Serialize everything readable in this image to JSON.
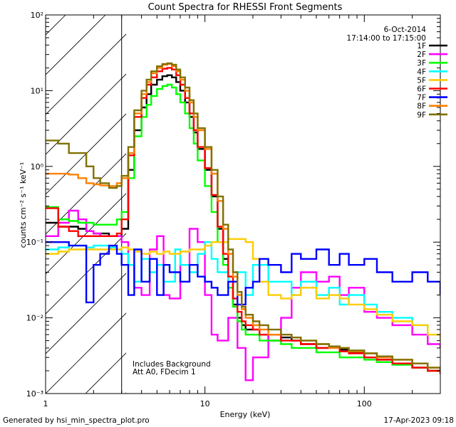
{
  "chart_data": {
    "type": "line",
    "title": "Count Spectra for RHESSI Front Segments",
    "xlabel": "Energy (keV)",
    "ylabel": "counts cm⁻² s⁻¹ keV⁻¹",
    "xscale": "log",
    "yscale": "log",
    "xlim": [
      1,
      300
    ],
    "ylim": [
      0.001,
      100
    ],
    "x_tick_labels": [
      "1",
      "10",
      "100"
    ],
    "y_tick_labels": [
      "10⁻³",
      "10⁻²",
      "10⁻¹",
      "10⁰",
      "10¹",
      "10²"
    ],
    "shaded_region_keV": [
      1,
      3
    ],
    "date": "6-Oct-2014",
    "time_range": "17:14:00 to 17:15:00",
    "legend_position": "top-right",
    "annotations": [
      "Includes Background",
      "Att A0, FDecim 1"
    ],
    "footer_left": "Generated by hsi_min_spectra_plot.pro",
    "footer_right": "17-Apr-2023 09:18",
    "series": [
      {
        "name": "1F",
        "color": "#000000",
        "x": [
          1.0,
          1.2,
          1.4,
          1.6,
          1.8,
          2.0,
          2.2,
          2.5,
          2.8,
          3.0,
          3.3,
          3.6,
          4.0,
          4.3,
          4.6,
          5.0,
          5.4,
          5.8,
          6.2,
          6.6,
          7.0,
          7.5,
          8.0,
          8.5,
          9.0,
          10,
          11,
          12,
          13,
          14,
          15,
          16,
          17,
          18,
          20,
          22,
          25,
          30,
          35,
          40,
          50,
          60,
          70,
          80,
          100,
          120,
          150,
          200,
          250,
          300
        ],
        "y": [
          0.18,
          0.16,
          0.16,
          0.15,
          0.14,
          0.13,
          0.13,
          0.12,
          0.12,
          0.15,
          0.9,
          3,
          6,
          9,
          12,
          14,
          15.5,
          16,
          15,
          13,
          10,
          7,
          4.5,
          2.8,
          1.7,
          0.9,
          0.4,
          0.15,
          0.06,
          0.03,
          0.015,
          0.01,
          0.008,
          0.007,
          0.007,
          0.006,
          0.005,
          0.0055,
          0.005,
          0.0045,
          0.004,
          0.0042,
          0.0038,
          0.0035,
          0.003,
          0.0028,
          0.0025,
          0.0022,
          0.002,
          0.002
        ]
      },
      {
        "name": "2F",
        "color": "#ff00ff",
        "x": [
          1.0,
          1.2,
          1.4,
          1.6,
          1.8,
          2.0,
          2.2,
          2.5,
          2.8,
          3.0,
          3.3,
          3.6,
          4.0,
          4.5,
          5.0,
          5.5,
          6.0,
          7.0,
          8.0,
          9.0,
          10,
          11,
          12,
          14,
          16,
          18,
          20,
          25,
          30,
          35,
          40,
          50,
          60,
          70,
          80,
          100,
          120,
          150,
          200,
          250,
          300
        ],
        "y": [
          0.12,
          0.18,
          0.26,
          0.2,
          0.14,
          0.13,
          0.12,
          0.12,
          0.12,
          0.1,
          0.05,
          0.025,
          0.02,
          0.08,
          0.12,
          0.02,
          0.018,
          0.05,
          0.15,
          0.1,
          0.02,
          0.006,
          0.005,
          0.01,
          0.004,
          0.0015,
          0.003,
          0.006,
          0.01,
          0.025,
          0.04,
          0.03,
          0.035,
          0.02,
          0.025,
          0.012,
          0.01,
          0.008,
          0.006,
          0.0045,
          0.004
        ]
      },
      {
        "name": "3F",
        "color": "#00ff00",
        "x": [
          1.0,
          1.2,
          1.4,
          1.6,
          1.8,
          2.0,
          2.2,
          2.5,
          2.8,
          3.0,
          3.3,
          3.6,
          4.0,
          4.3,
          4.6,
          5.0,
          5.4,
          5.8,
          6.2,
          6.6,
          7.0,
          7.5,
          8.0,
          8.5,
          9.0,
          10,
          11,
          12,
          13,
          14,
          15,
          16,
          17,
          18,
          20,
          22,
          25,
          30,
          35,
          40,
          50,
          60,
          70,
          80,
          100,
          120,
          150,
          200,
          250,
          300
        ],
        "y": [
          0.29,
          0.2,
          0.19,
          0.18,
          0.18,
          0.17,
          0.17,
          0.17,
          0.2,
          0.25,
          0.7,
          2.5,
          4.5,
          6.5,
          8.5,
          10.5,
          11.5,
          12,
          11,
          9,
          7,
          5,
          3.2,
          2,
          1.2,
          0.55,
          0.25,
          0.1,
          0.05,
          0.025,
          0.014,
          0.009,
          0.007,
          0.006,
          0.006,
          0.005,
          0.005,
          0.0045,
          0.004,
          0.004,
          0.0035,
          0.0035,
          0.003,
          0.003,
          0.0028,
          0.0026,
          0.0024,
          0.0022,
          0.002,
          0.002
        ]
      },
      {
        "name": "4F",
        "color": "#00ffff",
        "x": [
          1.0,
          1.2,
          1.4,
          1.6,
          1.8,
          2.0,
          2.2,
          2.5,
          2.8,
          3.0,
          3.3,
          3.6,
          4.0,
          4.5,
          5.0,
          5.5,
          6.0,
          6.5,
          7.0,
          8.0,
          9.0,
          10,
          11,
          12,
          14,
          16,
          18,
          20,
          25,
          30,
          35,
          40,
          50,
          60,
          70,
          80,
          100,
          120,
          150,
          200,
          250,
          300
        ],
        "y": [
          0.08,
          0.085,
          0.09,
          0.09,
          0.085,
          0.09,
          0.09,
          0.085,
          0.08,
          0.07,
          0.05,
          0.03,
          0.06,
          0.04,
          0.05,
          0.03,
          0.03,
          0.08,
          0.05,
          0.04,
          0.07,
          0.1,
          0.06,
          0.04,
          0.03,
          0.04,
          0.02,
          0.05,
          0.03,
          0.03,
          0.02,
          0.03,
          0.02,
          0.025,
          0.015,
          0.02,
          0.015,
          0.012,
          0.01,
          0.008,
          0.006,
          0.005
        ]
      },
      {
        "name": "5F",
        "color": "#ffcc00",
        "x": [
          1.0,
          1.2,
          1.4,
          1.6,
          1.8,
          2.0,
          2.2,
          2.5,
          2.8,
          3.0,
          3.3,
          3.6,
          4.0,
          4.5,
          5.0,
          5.5,
          6.0,
          6.5,
          7.0,
          8.0,
          9.0,
          10,
          11,
          12,
          14,
          16,
          18,
          20,
          22,
          25,
          30,
          35,
          40,
          50,
          60,
          70,
          80,
          100,
          120,
          150,
          200,
          250,
          300
        ],
        "y": [
          0.07,
          0.075,
          0.08,
          0.08,
          0.08,
          0.08,
          0.08,
          0.08,
          0.08,
          0.085,
          0.08,
          0.075,
          0.07,
          0.075,
          0.07,
          0.075,
          0.07,
          0.07,
          0.075,
          0.08,
          0.08,
          0.09,
          0.1,
          0.1,
          0.11,
          0.11,
          0.1,
          0.06,
          0.03,
          0.02,
          0.018,
          0.02,
          0.025,
          0.018,
          0.02,
          0.018,
          0.015,
          0.013,
          0.011,
          0.009,
          0.008,
          0.006,
          0.005
        ]
      },
      {
        "name": "6F",
        "color": "#ff0000",
        "x": [
          1.0,
          1.2,
          1.4,
          1.6,
          1.8,
          2.0,
          2.2,
          2.5,
          2.8,
          3.0,
          3.3,
          3.6,
          4.0,
          4.3,
          4.6,
          5.0,
          5.4,
          5.8,
          6.2,
          6.6,
          7.0,
          7.5,
          8.0,
          8.5,
          9.0,
          10,
          11,
          12,
          13,
          14,
          15,
          16,
          17,
          18,
          20,
          22,
          25,
          30,
          35,
          40,
          50,
          60,
          70,
          80,
          100,
          120,
          150,
          200,
          250,
          300
        ],
        "y": [
          0.28,
          0.16,
          0.14,
          0.12,
          0.12,
          0.12,
          0.12,
          0.12,
          0.13,
          0.2,
          1.4,
          4.5,
          8,
          12,
          15,
          18,
          19.5,
          20,
          19,
          16,
          12,
          8,
          5,
          3,
          1.8,
          0.95,
          0.42,
          0.16,
          0.07,
          0.035,
          0.018,
          0.012,
          0.009,
          0.008,
          0.007,
          0.006,
          0.006,
          0.005,
          0.005,
          0.0045,
          0.004,
          0.004,
          0.0036,
          0.0034,
          0.003,
          0.0028,
          0.0025,
          0.0022,
          0.002,
          0.0018
        ]
      },
      {
        "name": "7F",
        "color": "#0000ff",
        "x": [
          1.0,
          1.2,
          1.4,
          1.6,
          1.8,
          2.0,
          2.2,
          2.5,
          2.8,
          3.0,
          3.3,
          3.6,
          4.0,
          4.5,
          5.0,
          5.5,
          6.0,
          7.0,
          8.0,
          9.0,
          10,
          11,
          12,
          14,
          16,
          18,
          20,
          22,
          25,
          30,
          35,
          40,
          50,
          60,
          70,
          80,
          100,
          120,
          150,
          200,
          250,
          300
        ],
        "y": [
          0.1,
          0.1,
          0.09,
          0.09,
          0.016,
          0.05,
          0.07,
          0.09,
          0.07,
          0.05,
          0.02,
          0.08,
          0.03,
          0.06,
          0.02,
          0.05,
          0.04,
          0.03,
          0.05,
          0.035,
          0.03,
          0.025,
          0.02,
          0.03,
          0.015,
          0.025,
          0.03,
          0.06,
          0.05,
          0.04,
          0.07,
          0.06,
          0.08,
          0.05,
          0.07,
          0.05,
          0.06,
          0.04,
          0.03,
          0.04,
          0.03,
          0.02
        ]
      },
      {
        "name": "8F",
        "color": "#ff7f00",
        "x": [
          1.0,
          1.2,
          1.4,
          1.6,
          1.8,
          2.0,
          2.2,
          2.5,
          2.8,
          3.0,
          3.3,
          3.6,
          4.0,
          4.3,
          4.6,
          5.0,
          5.4,
          5.8,
          6.2,
          6.6,
          7.0,
          7.5,
          8.0,
          8.5,
          9.0,
          10,
          11,
          12,
          13,
          14,
          15,
          16,
          17,
          18,
          20,
          22,
          25,
          30,
          35,
          40,
          50,
          60,
          70,
          80,
          100,
          120,
          150,
          200,
          250,
          300
        ],
        "y": [
          0.8,
          0.8,
          0.78,
          0.7,
          0.6,
          0.58,
          0.56,
          0.55,
          0.6,
          0.7,
          1.5,
          5,
          9,
          13,
          17,
          20,
          22,
          22.5,
          21,
          18,
          14,
          10,
          7,
          4.5,
          3,
          1.7,
          0.8,
          0.35,
          0.15,
          0.07,
          0.035,
          0.02,
          0.013,
          0.01,
          0.008,
          0.007,
          0.006,
          0.006,
          0.0055,
          0.005,
          0.0045,
          0.004,
          0.004,
          0.0036,
          0.0034,
          0.003,
          0.0028,
          0.0025,
          0.0022,
          0.002
        ]
      },
      {
        "name": "9F",
        "color": "#807000",
        "x": [
          1.0,
          1.2,
          1.4,
          1.6,
          1.8,
          2.0,
          2.2,
          2.5,
          2.8,
          3.0,
          3.3,
          3.6,
          4.0,
          4.3,
          4.6,
          5.0,
          5.4,
          5.8,
          6.2,
          6.6,
          7.0,
          7.5,
          8.0,
          8.5,
          9.0,
          10,
          11,
          12,
          13,
          14,
          15,
          16,
          17,
          18,
          20,
          22,
          25,
          30,
          35,
          40,
          50,
          60,
          70,
          80,
          100,
          120,
          150,
          200,
          250,
          300
        ],
        "y": [
          2.2,
          2.0,
          1.5,
          1.5,
          1.0,
          0.7,
          0.6,
          0.52,
          0.55,
          0.75,
          1.8,
          5.5,
          10,
          14,
          18,
          21,
          22.5,
          23,
          22,
          19,
          15,
          11,
          7.5,
          5,
          3.2,
          1.8,
          0.9,
          0.4,
          0.17,
          0.08,
          0.04,
          0.022,
          0.014,
          0.011,
          0.009,
          0.008,
          0.007,
          0.006,
          0.0055,
          0.005,
          0.0045,
          0.0042,
          0.004,
          0.0037,
          0.0034,
          0.0031,
          0.0028,
          0.0025,
          0.0022,
          0.002
        ]
      }
    ]
  }
}
